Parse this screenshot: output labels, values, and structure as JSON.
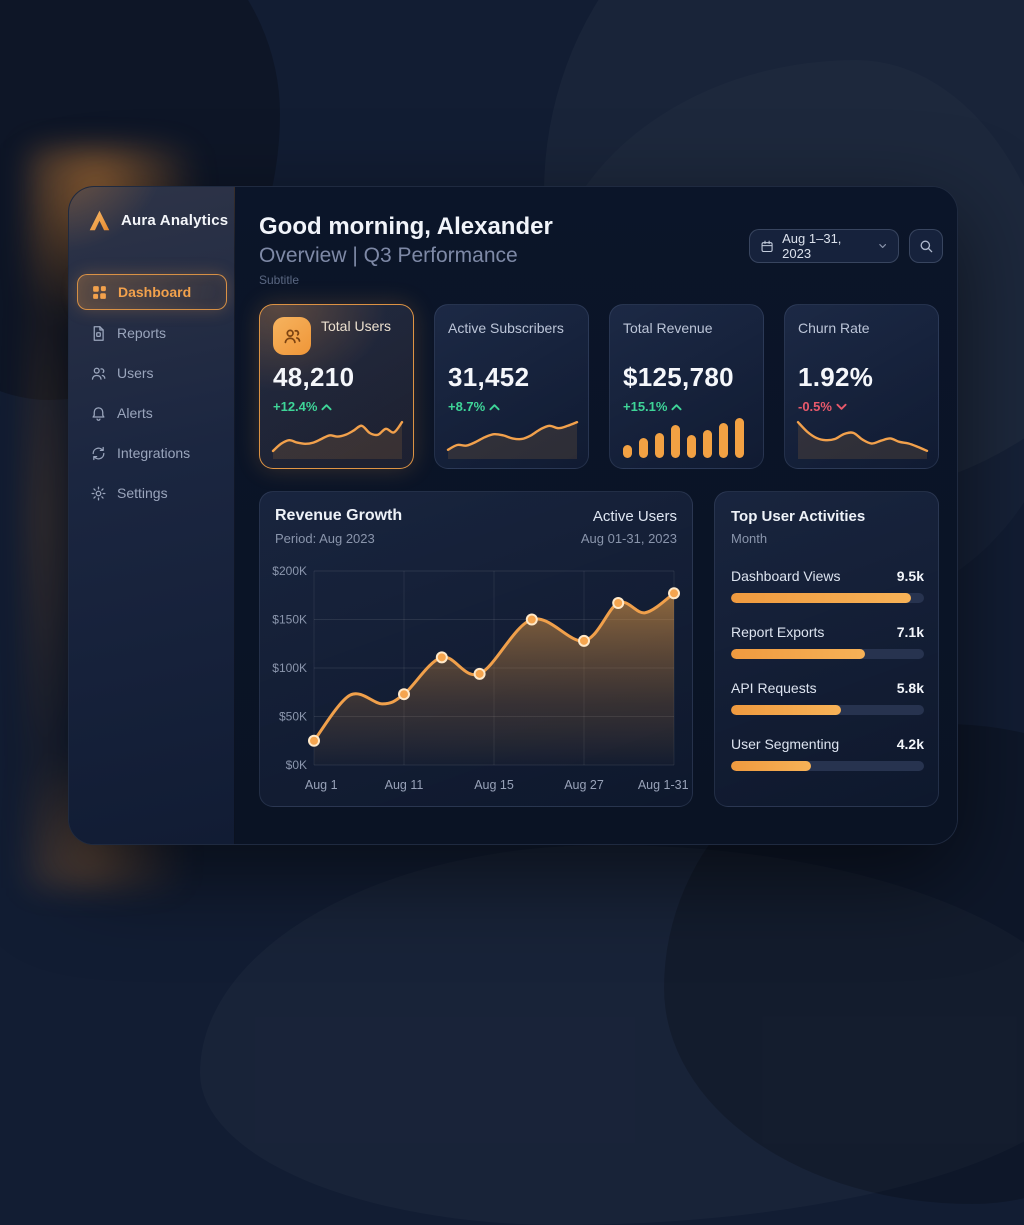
{
  "app": {
    "name": "Aura Analytics"
  },
  "sidebar": {
    "items": [
      {
        "label": "Dashboard",
        "icon": "dashboard-icon",
        "active": true
      },
      {
        "label": "Reports",
        "icon": "reports-icon",
        "active": false
      },
      {
        "label": "Users",
        "icon": "users-icon",
        "active": false
      },
      {
        "label": "Alerts",
        "icon": "alerts-icon",
        "active": false
      },
      {
        "label": "Integrations",
        "icon": "integrations-icon",
        "active": false
      },
      {
        "label": "Settings",
        "icon": "settings-icon",
        "active": false
      }
    ]
  },
  "header": {
    "greeting": "Good morning, Alexander",
    "section": "Overview | Q3 Performance",
    "subtitle": "Subtitle",
    "date_range": "Aug 1–31, 2023"
  },
  "stats": [
    {
      "label": "Total Users",
      "value": "48,210",
      "change": "+12.4%",
      "trend": "up",
      "highlighted": true,
      "spark_type": "line",
      "spark": [
        10,
        22,
        28,
        24,
        22,
        24,
        30,
        36,
        34,
        37,
        44,
        52,
        40,
        37,
        47,
        41,
        58
      ]
    },
    {
      "label": "Active Subscribers",
      "value": "31,452",
      "change": "+8.7%",
      "trend": "up",
      "highlighted": false,
      "spark_type": "line",
      "spark": [
        12,
        20,
        19,
        25,
        33,
        38,
        36,
        31,
        30,
        36,
        46,
        52,
        48,
        52,
        58
      ]
    },
    {
      "label": "Total Revenue",
      "value": "$125,780",
      "change": "+15.1%",
      "trend": "up",
      "highlighted": false,
      "spark_type": "bar",
      "spark": [
        13,
        20,
        25,
        33,
        23,
        28,
        35,
        40
      ]
    },
    {
      "label": "Churn Rate",
      "value": "1.92%",
      "change": "-0.5%",
      "trend": "down",
      "highlighted": false,
      "spark_type": "line",
      "spark": [
        62,
        45,
        34,
        30,
        32,
        41,
        43,
        31,
        24,
        29,
        33,
        27,
        24,
        18,
        11
      ]
    }
  ],
  "chart_data": {
    "type": "area",
    "title": "Revenue Growth",
    "subtitle": "Period: Aug 2023",
    "legend_title": "Active Users",
    "legend_subtitle": "Aug 01-31, 2023",
    "ylim": [
      0,
      200000
    ],
    "y_ticks": [
      "$0K",
      "$50K",
      "$100K",
      "$150K",
      "$200K"
    ],
    "x_ticks": [
      {
        "label": "Aug 1",
        "pos": 0.02
      },
      {
        "label": "Aug 11",
        "pos": 0.25
      },
      {
        "label": "Aug 15",
        "pos": 0.5
      },
      {
        "label": "Aug 27",
        "pos": 0.75
      },
      {
        "label": "Aug 1-31",
        "pos": 0.97
      }
    ],
    "grid": true,
    "points": [
      {
        "x": 0.0,
        "value": 25000,
        "marker": true
      },
      {
        "x": 0.1,
        "value": 72000,
        "marker": false
      },
      {
        "x": 0.19,
        "value": 63000,
        "marker": false
      },
      {
        "x": 0.25,
        "value": 73000,
        "marker": true
      },
      {
        "x": 0.355,
        "value": 111000,
        "marker": true
      },
      {
        "x": 0.46,
        "value": 94000,
        "marker": true
      },
      {
        "x": 0.605,
        "value": 150000,
        "marker": true
      },
      {
        "x": 0.75,
        "value": 128000,
        "marker": true
      },
      {
        "x": 0.845,
        "value": 167000,
        "marker": true
      },
      {
        "x": 0.92,
        "value": 157000,
        "marker": false
      },
      {
        "x": 1.0,
        "value": 177000,
        "marker": true
      }
    ]
  },
  "activities": {
    "title": "Top User Activities",
    "period": "Month",
    "max": 10.2,
    "items": [
      {
        "label": "Dashboard Views",
        "value": 9.5,
        "value_label": "9.5k"
      },
      {
        "label": "Report Exports",
        "value": 7.1,
        "value_label": "7.1k"
      },
      {
        "label": "API Requests",
        "value": 5.8,
        "value_label": "5.8k"
      },
      {
        "label": "User Segmenting",
        "value": 4.2,
        "value_label": "4.2k"
      }
    ]
  },
  "colors": {
    "accent": "#F2A14C",
    "green": "#3ED598",
    "red": "#E8596B",
    "panel": "#0A1426"
  }
}
